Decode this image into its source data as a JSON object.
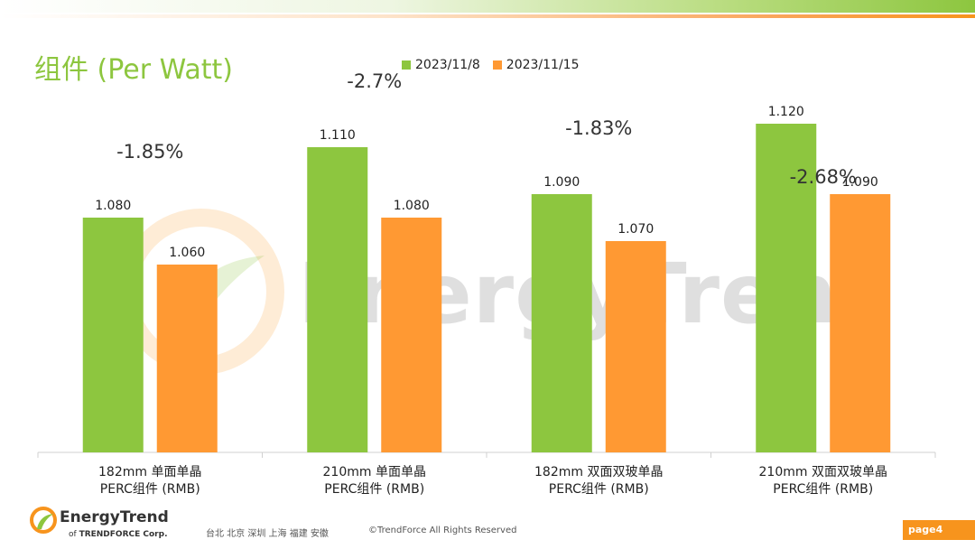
{
  "header": {
    "title": "组件 (Per Watt)"
  },
  "legend": [
    {
      "label": "2023/11/8",
      "color": "#8dc63f"
    },
    {
      "label": "2023/11/15",
      "color": "#ff9933"
    }
  ],
  "watermark": {
    "text": "EnergyTrend"
  },
  "chart_data": {
    "type": "bar",
    "title": "组件 (Per Watt)",
    "categories": [
      [
        "182mm 单面单晶",
        "PERC组件 (RMB)"
      ],
      [
        "210mm 单面单晶",
        "PERC组件 (RMB)"
      ],
      [
        "182mm 双面双玻单晶",
        "PERC组件 (RMB)"
      ],
      [
        "210mm 双面双玻单晶",
        "PERC组件 (RMB)"
      ]
    ],
    "series": [
      {
        "name": "2023/11/8",
        "color": "#8dc63f",
        "values": [
          1.08,
          1.11,
          1.09,
          1.12
        ],
        "labels": [
          "1.080",
          "1.110",
          "1.090",
          "1.120"
        ]
      },
      {
        "name": "2023/11/15",
        "color": "#ff9933",
        "values": [
          1.06,
          1.08,
          1.07,
          1.09
        ],
        "labels": [
          "1.060",
          "1.080",
          "1.070",
          "1.090"
        ]
      }
    ],
    "annotations": [
      "-1.85%",
      "-2.7%",
      "-1.83%",
      "-2.68%"
    ],
    "ylim": [
      0.98,
      1.13
    ],
    "grid": false,
    "legend_position": "top"
  },
  "footer": {
    "brand": "EnergyTrend",
    "brand_sub_prefix": "of",
    "brand_sub": "TRENDFORCE Corp.",
    "cities": "台北  北京  深圳  上海  福建  安徽",
    "copyright": "©TrendForce All Rights Reserved",
    "page": "page4"
  }
}
